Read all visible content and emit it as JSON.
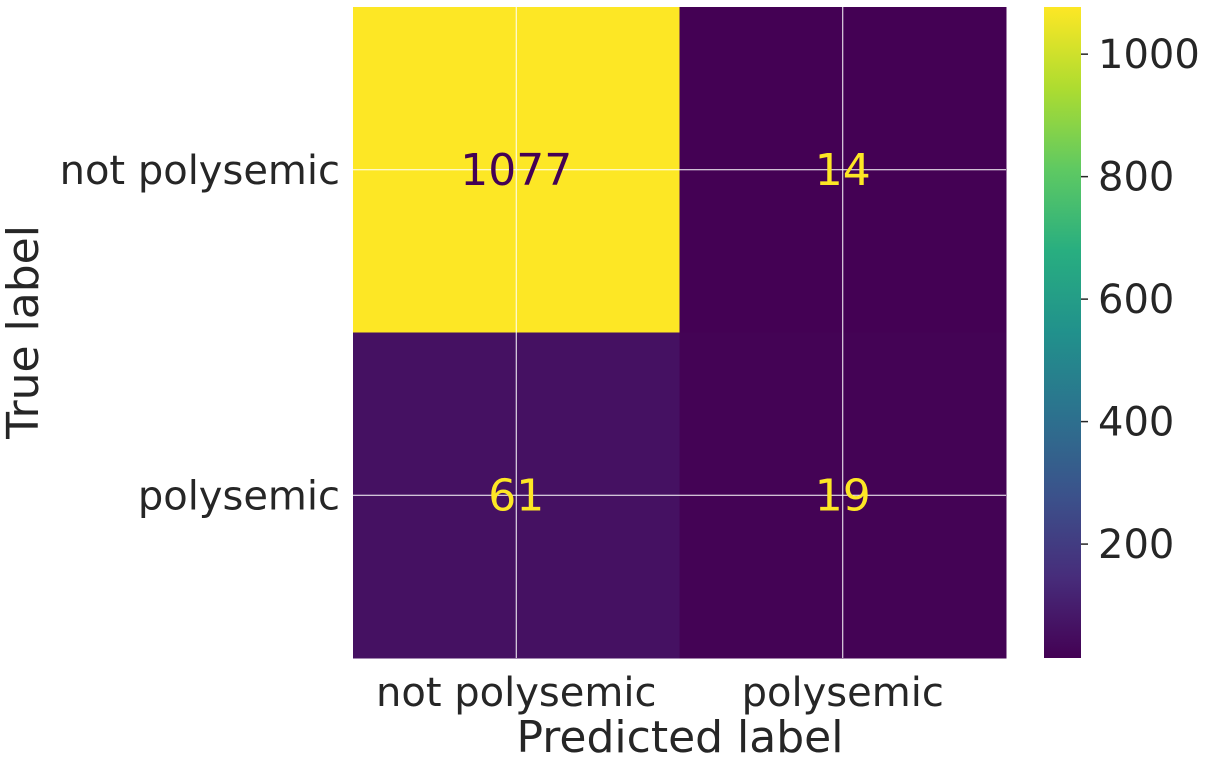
{
  "chart_data": {
    "type": "heatmap",
    "title": "",
    "xlabel": "Predicted label",
    "ylabel": "True label",
    "x_categories": [
      "not polysemic",
      "polysemic"
    ],
    "y_categories": [
      "not polysemic",
      "polysemic"
    ],
    "matrix": [
      [
        1077,
        14
      ],
      [
        61,
        19
      ]
    ],
    "colormap": "viridis",
    "colorbar": {
      "min": 14,
      "max": 1077,
      "ticks": [
        200,
        400,
        600,
        800,
        1000
      ]
    },
    "grid": true,
    "colors": {
      "text_dark": "#440154",
      "text_light": "#fde725",
      "label_text": "#262626",
      "grid": "#ffffff"
    }
  }
}
